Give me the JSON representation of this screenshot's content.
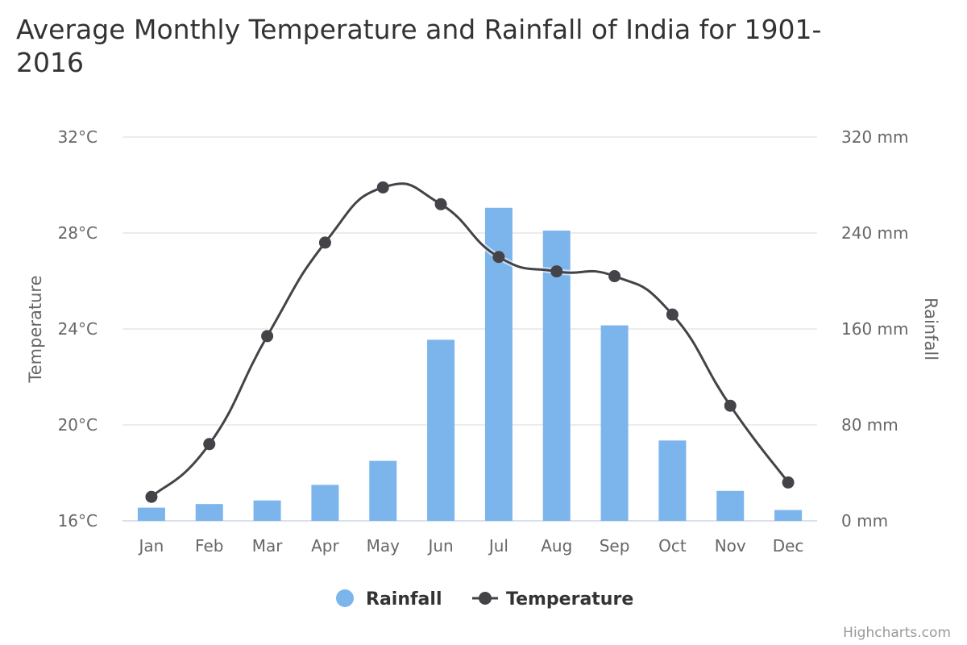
{
  "chart_data": {
    "type": "bar+line",
    "title": "Average Monthly Temperature and Rainfall of India for 1901-2016",
    "title_lines": [
      "Average Monthly Temperature and Rainfall of India for 1901-",
      "2016"
    ],
    "categories": [
      "Jan",
      "Feb",
      "Mar",
      "Apr",
      "May",
      "Jun",
      "Jul",
      "Aug",
      "Sep",
      "Oct",
      "Nov",
      "Dec"
    ],
    "series": [
      {
        "name": "Rainfall",
        "type": "column",
        "axis": "right",
        "unit": "mm",
        "color": "#7cb5ec",
        "values": [
          11,
          14,
          17,
          30,
          50,
          151,
          261,
          242,
          163,
          67,
          25,
          9
        ]
      },
      {
        "name": "Temperature",
        "type": "spline",
        "axis": "left",
        "unit": "°C",
        "color": "#434348",
        "values": [
          17.0,
          19.2,
          23.7,
          27.6,
          29.9,
          29.2,
          27.0,
          26.4,
          26.2,
          24.6,
          20.8,
          17.6
        ]
      }
    ],
    "y_left": {
      "title": "Temperature",
      "range": [
        16,
        32
      ],
      "ticks": [
        16,
        20,
        24,
        28,
        32
      ],
      "tick_labels": [
        "16°C",
        "20°C",
        "24°C",
        "28°C",
        "32°C"
      ]
    },
    "y_right": {
      "title": "Rainfall",
      "range": [
        0,
        320
      ],
      "ticks": [
        0,
        80,
        160,
        240,
        320
      ],
      "tick_labels": [
        "0 mm",
        "80 mm",
        "160 mm",
        "240 mm",
        "320 mm"
      ]
    },
    "grid": true,
    "legend": {
      "placement": "bottom-center",
      "items": [
        "Rainfall",
        "Temperature"
      ]
    },
    "credits": "Highcharts.com"
  }
}
